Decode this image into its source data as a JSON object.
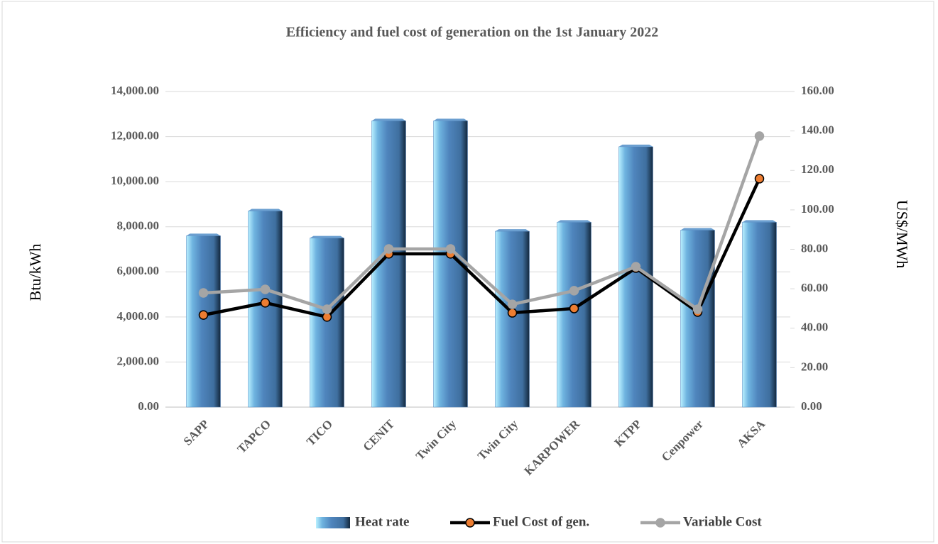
{
  "chart_data": {
    "type": "bar",
    "title": "Efficiency and fuel cost of generation on the 1st January 2022",
    "y_label": "Btu/kWh",
    "y2_label": "US$/MWh",
    "categories": [
      "SAPP",
      "TAPCO",
      "TICO",
      "CENIT",
      "Twin City",
      "Twin City",
      "KARPOWER",
      "KTPP",
      "Cenpower",
      "AKSA"
    ],
    "series": [
      {
        "name": "Heat rate",
        "type": "bar",
        "color": "#4f81bd",
        "values": [
          7600,
          8700,
          7500,
          12700,
          12700,
          7800,
          8200,
          11550,
          7850,
          8200
        ]
      },
      {
        "name": "Fuel Cost of gen.",
        "type": "line",
        "axis": "y2",
        "color": "#000000",
        "marker_color": "#ed7d31",
        "values": [
          46.7,
          52.9,
          45.7,
          77.7,
          77.7,
          47.8,
          50.0,
          70.5,
          48.2,
          115.8
        ]
      },
      {
        "name": "Variable Cost",
        "type": "line",
        "axis": "y2",
        "color": "#a5a5a5",
        "marker_color": "#a5a5a5",
        "values": [
          57.9,
          59.7,
          49.6,
          80.2,
          80.2,
          52.1,
          59.0,
          71.2,
          49.6,
          137.4
        ]
      }
    ],
    "ylim": [
      0,
      14000
    ],
    "yticks": [
      {
        "value": 0,
        "label": "0.00"
      },
      {
        "value": 2000,
        "label": "2,000.00"
      },
      {
        "value": 4000,
        "label": "4,000.00"
      },
      {
        "value": 6000,
        "label": "6,000.00"
      },
      {
        "value": 8000,
        "label": "8,000.00"
      },
      {
        "value": 10000,
        "label": "10,000.00"
      },
      {
        "value": 12000,
        "label": "12,000.00"
      },
      {
        "value": 14000,
        "label": "14,000.00"
      }
    ],
    "y2lim": [
      0,
      160
    ],
    "y2ticks": [
      {
        "value": 0,
        "label": "0.00"
      },
      {
        "value": 20,
        "label": "20.00"
      },
      {
        "value": 40,
        "label": "40.00"
      },
      {
        "value": 60,
        "label": "60.00"
      },
      {
        "value": 80,
        "label": "80.00"
      },
      {
        "value": 100,
        "label": "100.00"
      },
      {
        "value": 120,
        "label": "120.00"
      },
      {
        "value": 140,
        "label": "140.00"
      },
      {
        "value": 160,
        "label": "160.00"
      }
    ],
    "grid": true,
    "legend": "bottom"
  }
}
